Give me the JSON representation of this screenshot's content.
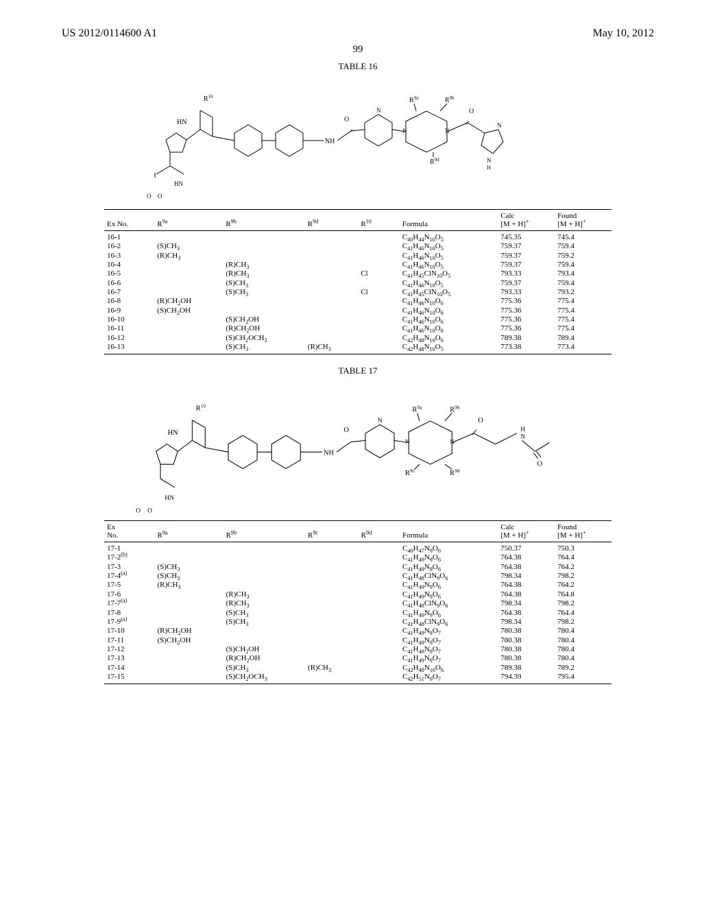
{
  "header": {
    "pub_number": "US 2012/0114600 A1",
    "pub_date": "May 10, 2012",
    "page_center": "99"
  },
  "table16": {
    "title": "TABLE 16",
    "headers": [
      "Ex No.",
      "R<sup>9a</sup>",
      "R<sup>9b</sup>",
      "R<sup>9d</sup>",
      "R<sup>10</sup>",
      "Formula",
      "Calc<br>[M + H]<sup>+</sup>",
      "Found<br>[M + H]<sup>+</sup>"
    ],
    "rows": [
      [
        "16-1",
        "",
        "",
        "",
        "",
        "C<sub>40</sub>H<sub>44</sub>N<sub>10</sub>O<sub>5</sub>",
        "745.35",
        "745.4"
      ],
      [
        "16-2",
        "(S)CH<sub>3</sub>",
        "",
        "",
        "",
        "C<sub>41</sub>H<sub>46</sub>N<sub>10</sub>O<sub>5</sub>",
        "759.37",
        "759.4"
      ],
      [
        "16-3",
        "(R)CH<sub>3</sub>",
        "",
        "",
        "",
        "C<sub>41</sub>H<sub>46</sub>N<sub>10</sub>O<sub>5</sub>",
        "759.37",
        "759.2"
      ],
      [
        "16-4",
        "",
        "(R)CH<sub>3</sub>",
        "",
        "",
        "C<sub>41</sub>H<sub>46</sub>N<sub>10</sub>O<sub>5</sub>",
        "759.37",
        "759.4"
      ],
      [
        "16-5",
        "",
        "(R)CH<sub>3</sub>",
        "",
        "Cl",
        "C<sub>41</sub>H<sub>45</sub>ClN<sub>10</sub>O<sub>5</sub>",
        "793.33",
        "793.4"
      ],
      [
        "16-6",
        "",
        "(S)CH<sub>3</sub>",
        "",
        "",
        "C<sub>41</sub>H<sub>46</sub>N<sub>10</sub>O<sub>5</sub>",
        "759.37",
        "759.4"
      ],
      [
        "16-7",
        "",
        "(S)CH<sub>3</sub>",
        "",
        "Cl",
        "C<sub>41</sub>H<sub>45</sub>ClN<sub>10</sub>O<sub>5</sub>",
        "793.33",
        "793.2"
      ],
      [
        "16-8",
        "(R)CH<sub>2</sub>OH",
        "",
        "",
        "",
        "C<sub>41</sub>H<sub>46</sub>N<sub>10</sub>O<sub>6</sub>",
        "775.36",
        "775.4"
      ],
      [
        "16-9",
        "(S)CH<sub>2</sub>OH",
        "",
        "",
        "",
        "C<sub>41</sub>H<sub>46</sub>N<sub>10</sub>O<sub>6</sub>",
        "775.36",
        "775.4"
      ],
      [
        "16-10",
        "",
        "(S)CH<sub>2</sub>OH",
        "",
        "",
        "C<sub>41</sub>H<sub>46</sub>N<sub>10</sub>O<sub>6</sub>",
        "775.36",
        "775.4"
      ],
      [
        "16-11",
        "",
        "(R)CH<sub>2</sub>OH",
        "",
        "",
        "C<sub>41</sub>H<sub>46</sub>N<sub>10</sub>O<sub>6</sub>",
        "775.36",
        "775.4"
      ],
      [
        "16-12",
        "",
        "(S)CH<sub>2</sub>OCH<sub>3</sub>",
        "",
        "",
        "C<sub>42</sub>H<sub>48</sub>N<sub>10</sub>O<sub>6</sub>",
        "789.38",
        "789.4"
      ],
      [
        "16-13",
        "",
        "(S)CH<sub>3</sub>",
        "(R)CH<sub>3</sub>",
        "",
        "C<sub>42</sub>H<sub>48</sub>N<sub>10</sub>O<sub>5</sub>",
        "773.38",
        "773.4"
      ]
    ]
  },
  "table17": {
    "title": "TABLE 17",
    "headers": [
      "Ex<br>No.",
      "R<sup>9a</sup>",
      "R<sup>9b</sup>",
      "R<sup>9c</sup>",
      "R<sup>9d</sup>",
      "Formula",
      "Calc<br>[M + H]<sup>+</sup>",
      "Found<br>[M + H]<sup>+</sup>"
    ],
    "rows": [
      [
        "17-1",
        "",
        "",
        "",
        "",
        "C<sub>40</sub>H<sub>47</sub>N<sub>9</sub>O<sub>6</sub>",
        "750.37",
        "750.3"
      ],
      [
        "17-2<sup>(b)</sup>",
        "",
        "",
        "",
        "",
        "C<sub>41</sub>H<sub>49</sub>N<sub>9</sub>O<sub>6</sub>",
        "764.38",
        "764.4"
      ],
      [
        "17-3",
        "(S)CH<sub>3</sub>",
        "",
        "",
        "",
        "C<sub>41</sub>H<sub>49</sub>N<sub>9</sub>O<sub>6</sub>",
        "764.38",
        "764.2"
      ],
      [
        "17-4<sup>(a)</sup>",
        "(S)CH<sub>3</sub>",
        "",
        "",
        "",
        "C<sub>41</sub>H<sub>48</sub>ClN<sub>9</sub>O<sub>6</sub>",
        "798.34",
        "798.2"
      ],
      [
        "17-5",
        "(R)CH<sub>3</sub>",
        "",
        "",
        "",
        "C<sub>41</sub>H<sub>49</sub>N<sub>9</sub>O<sub>6</sub>",
        "764.38",
        "764.2"
      ],
      [
        "17-6",
        "",
        "(R)CH<sub>3</sub>",
        "",
        "",
        "C<sub>41</sub>H<sub>49</sub>N<sub>9</sub>O<sub>6</sub>",
        "764.38",
        "764.8"
      ],
      [
        "17-7<sup>(a)</sup>",
        "",
        "(R)CH<sub>3</sub>",
        "",
        "",
        "C<sub>41</sub>H<sub>48</sub>ClN<sub>9</sub>O<sub>6</sub>",
        "798.34",
        "798.2"
      ],
      [
        "17-8",
        "",
        "(S)CH<sub>3</sub>",
        "",
        "",
        "C<sub>41</sub>H<sub>49</sub>N<sub>9</sub>O<sub>6</sub>",
        "764.38",
        "764.4"
      ],
      [
        "17-9<sup>(a)</sup>",
        "",
        "(S)CH<sub>3</sub>",
        "",
        "",
        "C<sub>41</sub>H<sub>48</sub>ClN<sub>9</sub>O<sub>6</sub>",
        "798.34",
        "798.2"
      ],
      [
        "17-10",
        "(R)CH<sub>2</sub>OH",
        "",
        "",
        "",
        "C<sub>41</sub>H<sub>49</sub>N<sub>9</sub>O<sub>7</sub>",
        "780.38",
        "780.4"
      ],
      [
        "17-11",
        "(S)CH<sub>2</sub>OH",
        "",
        "",
        "",
        "C<sub>41</sub>H<sub>49</sub>N<sub>9</sub>O<sub>7</sub>",
        "780.38",
        "780.4"
      ],
      [
        "17-12",
        "",
        "(S)CH<sub>2</sub>OH",
        "",
        "",
        "C<sub>41</sub>H<sub>49</sub>N<sub>9</sub>O<sub>7</sub>",
        "780.38",
        "780.4"
      ],
      [
        "17-13",
        "",
        "(R)CH<sub>2</sub>OH",
        "",
        "",
        "C<sub>41</sub>H<sub>49</sub>N<sub>9</sub>O<sub>7</sub>",
        "780.38",
        "780.4"
      ],
      [
        "17-14",
        "",
        "(S)CH<sub>3</sub>",
        "(R)CH<sub>3</sub>",
        "",
        "C<sub>42</sub>H<sub>48</sub>N<sub>10</sub>O<sub>6</sub>",
        "789.38",
        "789.2"
      ],
      [
        "17-15",
        "",
        "(S)CH<sub>2</sub>OCH<sub>3</sub>",
        "",
        "",
        "C<sub>42</sub>H<sub>51</sub>N<sub>9</sub>O<sub>7</sub>",
        "794.39",
        "795.4"
      ]
    ]
  }
}
